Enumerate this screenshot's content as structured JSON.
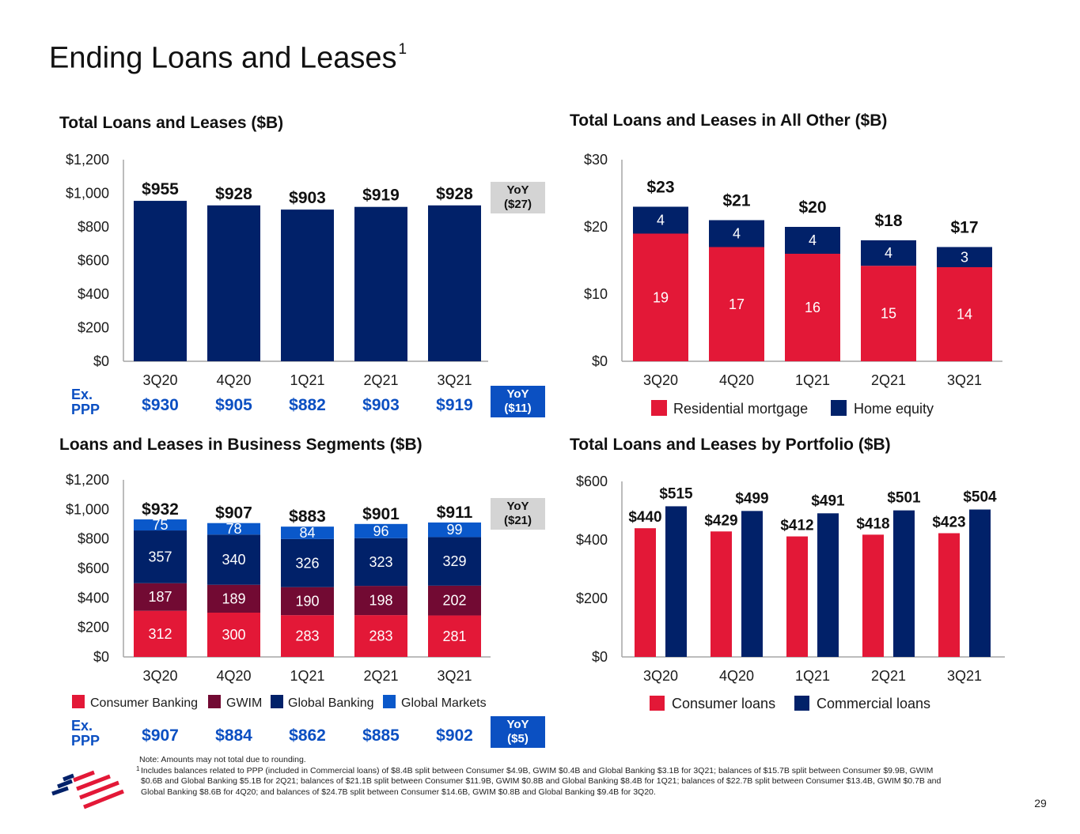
{
  "page": {
    "title": "Ending Loans and Leases",
    "title_superscript": "1",
    "page_number": "29"
  },
  "colors": {
    "navy": "#012169",
    "red": "#e31837",
    "maroon": "#720a33",
    "market_blue": "#0a58ca",
    "ppp_blue": "#0b4fc2",
    "yoy_gray": "#d4d4d4",
    "axis": "#a6a6a6"
  },
  "chart_data": [
    {
      "id": "total-loans-chart",
      "type": "bar",
      "stacked": false,
      "title": "Total Loans and Leases ($B)",
      "xlabel": "",
      "ylabel": "",
      "grid": false,
      "categories": [
        "3Q20",
        "4Q20",
        "1Q21",
        "2Q21",
        "3Q21"
      ],
      "ylim": [
        0,
        1200
      ],
      "yticks": [
        {
          "value": 0,
          "label": "$0"
        },
        {
          "value": 200,
          "label": "$200"
        },
        {
          "value": 400,
          "label": "$400"
        },
        {
          "value": 600,
          "label": "$600"
        },
        {
          "value": 800,
          "label": "$800"
        },
        {
          "value": 1000,
          "label": "$1,000"
        },
        {
          "value": 1200,
          "label": "$1,200"
        }
      ],
      "series": [
        {
          "name": "Total loans and leases",
          "color": "#012169",
          "values": [
            955,
            928,
            903,
            919,
            928
          ]
        }
      ],
      "totals": [
        955,
        928,
        903,
        919,
        928
      ],
      "total_labels": [
        "$955",
        "$928",
        "$903",
        "$919",
        "$928"
      ],
      "yoy": {
        "label": "YoY",
        "value": "($27)"
      },
      "ex_ppp": {
        "label_line1": "Ex.",
        "label_line2": "PPP",
        "values": [
          930,
          905,
          882,
          903,
          919
        ],
        "labels": [
          "$930",
          "$905",
          "$882",
          "$903",
          "$919"
        ],
        "yoy": {
          "label": "YoY",
          "value": "($11)"
        }
      }
    },
    {
      "id": "all-other-chart",
      "type": "bar",
      "stacked": true,
      "title": "Total Loans and Leases in All Other ($B)",
      "xlabel": "",
      "ylabel": "",
      "grid": false,
      "legend": "bottom",
      "categories": [
        "3Q20",
        "4Q20",
        "1Q21",
        "2Q21",
        "3Q21"
      ],
      "ylim": [
        0,
        30
      ],
      "yticks": [
        {
          "value": 0,
          "label": "$0"
        },
        {
          "value": 10,
          "label": "$10"
        },
        {
          "value": 20,
          "label": "$20"
        },
        {
          "value": 30,
          "label": "$30"
        }
      ],
      "series": [
        {
          "name": "Residential mortgage",
          "color": "#e31837",
          "values": [
            19,
            17,
            16,
            15,
            14
          ]
        },
        {
          "name": "Home equity",
          "color": "#012169",
          "values": [
            4,
            4,
            4,
            4,
            3
          ]
        }
      ],
      "totals": [
        23,
        21,
        20,
        18,
        17
      ],
      "total_labels": [
        "$23",
        "$21",
        "$20",
        "$18",
        "$17"
      ]
    },
    {
      "id": "business-segments-chart",
      "type": "bar",
      "stacked": true,
      "title": "Loans and Leases in Business Segments ($B)",
      "xlabel": "",
      "ylabel": "",
      "grid": false,
      "legend": "bottom",
      "categories": [
        "3Q20",
        "4Q20",
        "1Q21",
        "2Q21",
        "3Q21"
      ],
      "ylim": [
        0,
        1200
      ],
      "yticks": [
        {
          "value": 0,
          "label": "$0"
        },
        {
          "value": 200,
          "label": "$200"
        },
        {
          "value": 400,
          "label": "$400"
        },
        {
          "value": 600,
          "label": "$600"
        },
        {
          "value": 800,
          "label": "$800"
        },
        {
          "value": 1000,
          "label": "$1,000"
        },
        {
          "value": 1200,
          "label": "$1,200"
        }
      ],
      "series": [
        {
          "name": "Consumer Banking",
          "color": "#e31837",
          "values": [
            312,
            300,
            283,
            283,
            281
          ]
        },
        {
          "name": "GWIM",
          "color": "#720a33",
          "values": [
            187,
            189,
            190,
            198,
            202
          ]
        },
        {
          "name": "Global Banking",
          "color": "#012169",
          "values": [
            357,
            340,
            326,
            323,
            329
          ]
        },
        {
          "name": "Global Markets",
          "color": "#0a58ca",
          "values": [
            75,
            78,
            84,
            96,
            99
          ]
        }
      ],
      "totals": [
        932,
        907,
        883,
        901,
        911
      ],
      "total_labels": [
        "$932",
        "$907",
        "$883",
        "$901",
        "$911"
      ],
      "yoy": {
        "label": "YoY",
        "value": "($21)"
      },
      "ex_ppp": {
        "label_line1": "Ex.",
        "label_line2": "PPP",
        "values": [
          907,
          884,
          862,
          885,
          902
        ],
        "labels": [
          "$907",
          "$884",
          "$862",
          "$885",
          "$902"
        ],
        "yoy": {
          "label": "YoY",
          "value": "($5)"
        }
      }
    },
    {
      "id": "portfolio-chart",
      "type": "bar",
      "stacked": false,
      "grouped": true,
      "title": "Total Loans and Leases by Portfolio ($B)",
      "xlabel": "",
      "ylabel": "",
      "grid": false,
      "legend": "bottom",
      "categories": [
        "3Q20",
        "4Q20",
        "1Q21",
        "2Q21",
        "3Q21"
      ],
      "ylim": [
        0,
        600
      ],
      "yticks": [
        {
          "value": 0,
          "label": "$0"
        },
        {
          "value": 200,
          "label": "$200"
        },
        {
          "value": 400,
          "label": "$400"
        },
        {
          "value": 600,
          "label": "$600"
        }
      ],
      "series": [
        {
          "name": "Consumer loans",
          "color": "#e31837",
          "values": [
            440,
            429,
            412,
            418,
            423
          ],
          "labels": [
            "$440",
            "$429",
            "$412",
            "$418",
            "$423"
          ]
        },
        {
          "name": "Commercial loans",
          "color": "#012169",
          "values": [
            515,
            499,
            491,
            501,
            504
          ],
          "labels": [
            "$515",
            "$499",
            "$491",
            "$501",
            "$504"
          ]
        }
      ]
    }
  ],
  "footnotes": {
    "note": "Note: Amounts may not total due to rounding.",
    "marker": "1",
    "lines": [
      "Includes balances related to PPP (included in Commercial loans) of $8.4B split between Consumer $4.9B, GWIM $0.4B and Global Banking $3.1B for 3Q21; balances of $15.7B split between Consumer $9.9B, GWIM",
      "$0.6B and Global Banking $5.1B for 2Q21; balances of $21.1B split between Consumer $11.9B, GWIM $0.8B and Global Banking $8.4B for 1Q21; balances of $22.7B split between Consumer $13.4B, GWIM $0.7B and",
      "Global Banking $8.6B for 4Q20; and balances of $24.7B split between Consumer $14.6B, GWIM $0.8B and Global Banking $9.4B for 3Q20."
    ]
  }
}
